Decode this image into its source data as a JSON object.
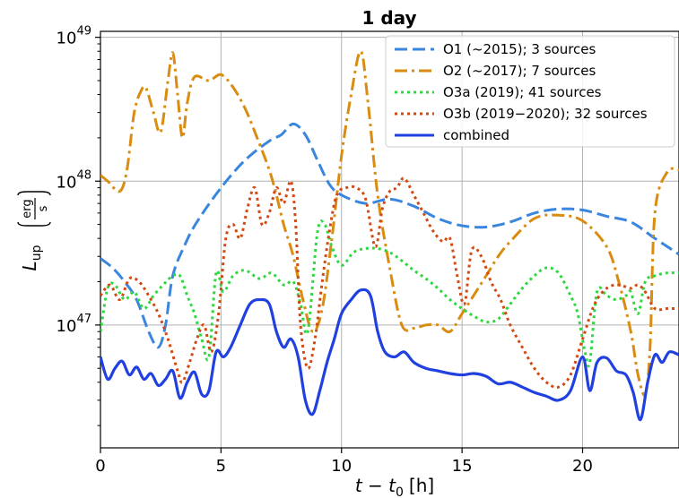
{
  "chart_data": {
    "type": "line",
    "title": "1 day",
    "xlabel": "t − t",
    "xlabel_sub": "0",
    "xlabel_unit": "[h]",
    "ylabel": "L",
    "ylabel_sub": "up",
    "ylabel_unit_num": "erg",
    "ylabel_unit_den": "s",
    "xlim": [
      0,
      24
    ],
    "ylim": [
      1.4e+46,
      1.1e+49
    ],
    "yscale": "log",
    "grid": true,
    "legend_position": "top-right",
    "x_ticks": [
      0,
      5,
      10,
      15,
      20
    ],
    "y_ticks": [
      {
        "value": 1e+47,
        "base": "10",
        "exp": "47"
      },
      {
        "value": 1e+48,
        "base": "10",
        "exp": "48"
      },
      {
        "value": 1e+49,
        "base": "10",
        "exp": "49"
      }
    ],
    "series": [
      {
        "name": "O1 (~2015); 3 sources",
        "color": "#3a86de",
        "dash": "dashed",
        "points": [
          [
            0,
            2.9e+47
          ],
          [
            0.5,
            2.5e+47
          ],
          [
            1,
            2e+47
          ],
          [
            1.5,
            1.5e+47
          ],
          [
            2,
            9e+46
          ],
          [
            2.4,
            7e+46
          ],
          [
            2.7,
            1e+47
          ],
          [
            3,
            2.2e+47
          ],
          [
            3.5,
            3.6e+47
          ],
          [
            4,
            5.2e+47
          ],
          [
            5,
            9e+47
          ],
          [
            6,
            1.4e+48
          ],
          [
            7,
            1.9e+48
          ],
          [
            7.5,
            2.1e+48
          ],
          [
            8,
            2.5e+48
          ],
          [
            8.5,
            2.1e+48
          ],
          [
            9,
            1.4e+48
          ],
          [
            9.5,
            9.5e+47
          ],
          [
            10,
            8e+47
          ],
          [
            11,
            7e+47
          ],
          [
            12,
            7.5e+47
          ],
          [
            13,
            6.7e+47
          ],
          [
            14,
            5.5e+47
          ],
          [
            15,
            4.9e+47
          ],
          [
            16,
            4.8e+47
          ],
          [
            17,
            5.2e+47
          ],
          [
            18,
            6e+47
          ],
          [
            19,
            6.4e+47
          ],
          [
            20,
            6.3e+47
          ],
          [
            21,
            5.7e+47
          ],
          [
            22,
            5.2e+47
          ],
          [
            23,
            4e+47
          ],
          [
            24,
            3.1e+47
          ]
        ]
      },
      {
        "name": "O2 (~2017); 7 sources",
        "color": "#d98c10",
        "dash": "dashdot",
        "points": [
          [
            0,
            1.1e+48
          ],
          [
            0.3,
            1e+48
          ],
          [
            0.8,
            8.5e+47
          ],
          [
            1.1,
            1.2e+48
          ],
          [
            1.4,
            3e+48
          ],
          [
            1.7,
            4.3e+48
          ],
          [
            1.9,
            4.4e+48
          ],
          [
            2.2,
            3e+48
          ],
          [
            2.5,
            2.2e+48
          ],
          [
            2.8,
            5e+48
          ],
          [
            3.0,
            7.8e+48
          ],
          [
            3.2,
            4e+48
          ],
          [
            3.4,
            2e+48
          ],
          [
            3.6,
            3.5e+48
          ],
          [
            3.9,
            5.3e+48
          ],
          [
            4.5,
            5e+48
          ],
          [
            5,
            5.5e+48
          ],
          [
            5.5,
            4.5e+48
          ],
          [
            6,
            3.2e+48
          ],
          [
            6.5,
            2e+48
          ],
          [
            7,
            1.2e+48
          ],
          [
            7.3,
            8e+47
          ],
          [
            7.6,
            5e+47
          ],
          [
            8,
            3e+47
          ],
          [
            8.4,
            1.5e+47
          ],
          [
            8.8,
            9e+46
          ],
          [
            9.2,
            1.3e+47
          ],
          [
            9.6,
            4e+47
          ],
          [
            10,
            1.5e+48
          ],
          [
            10.4,
            4e+48
          ],
          [
            10.8,
            8e+48
          ],
          [
            11.1,
            3.5e+48
          ],
          [
            11.5,
            8e+47
          ],
          [
            12,
            2.5e+47
          ],
          [
            12.5,
            1e+47
          ],
          [
            13,
            9.5e+46
          ],
          [
            13.5,
            1e+47
          ],
          [
            14,
            1e+47
          ],
          [
            14.5,
            9e+46
          ],
          [
            15,
            1.2e+47
          ],
          [
            16,
            2.2e+47
          ],
          [
            16.5,
            3e+47
          ],
          [
            17,
            3.8e+47
          ],
          [
            18,
            5.5e+47
          ],
          [
            19,
            5.8e+47
          ],
          [
            20,
            5.3e+47
          ],
          [
            21,
            3.5e+47
          ],
          [
            21.5,
            2e+47
          ],
          [
            22,
            9e+46
          ],
          [
            22.3,
            4.5e+46
          ],
          [
            22.6,
            3.3e+46
          ],
          [
            22.8,
            7e+46
          ],
          [
            23,
            6e+47
          ],
          [
            23.5,
            1.15e+48
          ],
          [
            24,
            1.2e+48
          ]
        ]
      },
      {
        "name": "O3a (2019); 41 sources",
        "color": "#2ed840",
        "dash": "dotted",
        "points": [
          [
            0,
            9e+46
          ],
          [
            0.3,
            1.8e+47
          ],
          [
            0.6,
            1.9e+47
          ],
          [
            1,
            1.5e+47
          ],
          [
            1.4,
            1.7e+47
          ],
          [
            1.8,
            1.3e+47
          ],
          [
            2.2,
            1.6e+47
          ],
          [
            2.6,
            1.9e+47
          ],
          [
            3.0,
            2.2e+47
          ],
          [
            3.3,
            2.2e+47
          ],
          [
            3.6,
            1.6e+47
          ],
          [
            3.9,
            1.2e+47
          ],
          [
            4.2,
            8e+46
          ],
          [
            4.5,
            6e+46
          ],
          [
            4.8,
            2.3e+47
          ],
          [
            5.1,
            1.7e+47
          ],
          [
            5.5,
            2.2e+47
          ],
          [
            6,
            2.4e+47
          ],
          [
            6.6,
            2.1e+47
          ],
          [
            7.1,
            2.3e+47
          ],
          [
            7.6,
            1.9e+47
          ],
          [
            8,
            2e+47
          ],
          [
            8.3,
            1.4e+47
          ],
          [
            8.6,
            9e+46
          ],
          [
            9.0,
            4.4e+47
          ],
          [
            9.3,
            5e+47
          ],
          [
            9.6,
            3.5e+47
          ],
          [
            10,
            2.6e+47
          ],
          [
            10.5,
            3.2e+47
          ],
          [
            11,
            3.4e+47
          ],
          [
            11.5,
            3.4e+47
          ],
          [
            12,
            3.2e+47
          ],
          [
            12.5,
            2.8e+47
          ],
          [
            13,
            2.4e+47
          ],
          [
            13.5,
            2.1e+47
          ],
          [
            14,
            1.8e+47
          ],
          [
            14.5,
            1.5e+47
          ],
          [
            15,
            1.3e+47
          ],
          [
            15.5,
            1.15e+47
          ],
          [
            16,
            1.05e+47
          ],
          [
            16.5,
            1.1e+47
          ],
          [
            17,
            1.4e+47
          ],
          [
            17.5,
            1.8e+47
          ],
          [
            18,
            2.2e+47
          ],
          [
            18.5,
            2.5e+47
          ],
          [
            19,
            2.3e+47
          ],
          [
            19.5,
            1.6e+47
          ],
          [
            19.8,
            1.2e+47
          ],
          [
            20.1,
            6.5e+46
          ],
          [
            20.3,
            5.5e+46
          ],
          [
            20.6,
            1.7e+47
          ],
          [
            21,
            1.6e+47
          ],
          [
            21.4,
            1.5e+47
          ],
          [
            21.8,
            1.6e+47
          ],
          [
            22,
            1.7e+47
          ],
          [
            22.3,
            1.2e+47
          ],
          [
            22.6,
            2e+47
          ],
          [
            23,
            2.2e+47
          ],
          [
            23.5,
            2.3e+47
          ],
          [
            24,
            2.3e+47
          ]
        ]
      },
      {
        "name": "O3b (2019−2020); 32 sources",
        "color": "#d24a12",
        "dash": "dotted",
        "points": [
          [
            0,
            1.6e+47
          ],
          [
            0.4,
            1.9e+47
          ],
          [
            0.8,
            1.5e+47
          ],
          [
            1.2,
            2.1e+47
          ],
          [
            1.6,
            2e+47
          ],
          [
            2,
            1.6e+47
          ],
          [
            2.4,
            1.2e+47
          ],
          [
            2.8,
            8e+46
          ],
          [
            3.2,
            4.8e+46
          ],
          [
            3.4,
            4e+46
          ],
          [
            3.7,
            5.5e+46
          ],
          [
            4.0,
            8e+46
          ],
          [
            4.3,
            1e+47
          ],
          [
            4.6,
            6.5e+46
          ],
          [
            4.9,
            1.2e+47
          ],
          [
            5.2,
            4e+47
          ],
          [
            5.5,
            5e+47
          ],
          [
            5.8,
            4e+47
          ],
          [
            6.1,
            6.5e+47
          ],
          [
            6.4,
            9e+47
          ],
          [
            6.7,
            5e+47
          ],
          [
            7.0,
            6e+47
          ],
          [
            7.3,
            9e+47
          ],
          [
            7.6,
            7e+47
          ],
          [
            7.9,
            1e+48
          ],
          [
            8.1,
            5e+47
          ],
          [
            8.3,
            1e+47
          ],
          [
            8.6,
            5e+46
          ],
          [
            8.9,
            8e+46
          ],
          [
            9.2,
            2e+47
          ],
          [
            9.5,
            4.5e+47
          ],
          [
            9.8,
            8e+47
          ],
          [
            10.2,
            9e+47
          ],
          [
            10.6,
            9e+47
          ],
          [
            11,
            7.5e+47
          ],
          [
            11.4,
            3.5e+47
          ],
          [
            11.7,
            6.5e+47
          ],
          [
            12.0,
            8.5e+47
          ],
          [
            12.3,
            9e+47
          ],
          [
            12.6,
            1.05e+48
          ],
          [
            13,
            8e+47
          ],
          [
            13.4,
            6e+47
          ],
          [
            13.8,
            4.5e+47
          ],
          [
            14.2,
            3.8e+47
          ],
          [
            14.5,
            4e+47
          ],
          [
            14.8,
            2.2e+47
          ],
          [
            15.1,
            1.4e+47
          ],
          [
            15.4,
            3.3e+47
          ],
          [
            15.8,
            3e+47
          ],
          [
            16.2,
            2e+47
          ],
          [
            16.6,
            1.5e+47
          ],
          [
            17,
            1e+47
          ],
          [
            17.5,
            7e+46
          ],
          [
            18,
            5e+46
          ],
          [
            18.5,
            4e+46
          ],
          [
            19,
            3.7e+46
          ],
          [
            19.5,
            4.5e+46
          ],
          [
            20,
            8e+46
          ],
          [
            20.5,
            1.4e+47
          ],
          [
            21,
            1.8e+47
          ],
          [
            21.5,
            1.9e+47
          ],
          [
            22,
            1.8e+47
          ],
          [
            22.3,
            1.9e+47
          ],
          [
            22.6,
            1.7e+47
          ],
          [
            23,
            1.3e+47
          ],
          [
            23.5,
            1.3e+47
          ],
          [
            24,
            1.3e+47
          ]
        ]
      },
      {
        "name": "combined",
        "color": "#2040e0",
        "dash": "solid",
        "points": [
          [
            0,
            6e+46
          ],
          [
            0.3,
            4.2e+46
          ],
          [
            0.6,
            5e+46
          ],
          [
            0.9,
            5.6e+46
          ],
          [
            1.2,
            4.5e+46
          ],
          [
            1.5,
            5.1e+46
          ],
          [
            1.8,
            4.2e+46
          ],
          [
            2.1,
            4.6e+46
          ],
          [
            2.4,
            3.8e+46
          ],
          [
            2.7,
            4.2e+46
          ],
          [
            3.0,
            4.8e+46
          ],
          [
            3.3,
            3.1e+46
          ],
          [
            3.6,
            4e+46
          ],
          [
            3.9,
            4.7e+46
          ],
          [
            4.2,
            3.3e+46
          ],
          [
            4.5,
            3.5e+46
          ],
          [
            4.8,
            6.5e+46
          ],
          [
            5.1,
            6e+46
          ],
          [
            5.4,
            7e+46
          ],
          [
            5.8,
            1e+47
          ],
          [
            6.2,
            1.4e+47
          ],
          [
            6.6,
            1.5e+47
          ],
          [
            7.0,
            1.4e+47
          ],
          [
            7.3,
            9e+46
          ],
          [
            7.6,
            7e+46
          ],
          [
            7.9,
            8e+46
          ],
          [
            8.2,
            6e+46
          ],
          [
            8.5,
            3e+46
          ],
          [
            8.8,
            2.4e+46
          ],
          [
            9.1,
            3.5e+46
          ],
          [
            9.4,
            5.5e+46
          ],
          [
            9.7,
            8e+46
          ],
          [
            10.0,
            1.2e+47
          ],
          [
            10.4,
            1.5e+47
          ],
          [
            10.8,
            1.75e+47
          ],
          [
            11.2,
            1.6e+47
          ],
          [
            11.5,
            9e+46
          ],
          [
            11.8,
            6.5e+46
          ],
          [
            12.2,
            6e+46
          ],
          [
            12.6,
            6.5e+46
          ],
          [
            13.0,
            5.5e+46
          ],
          [
            13.5,
            5e+46
          ],
          [
            14,
            4.8e+46
          ],
          [
            14.5,
            4.6e+46
          ],
          [
            15,
            4.5e+46
          ],
          [
            15.5,
            4.6e+46
          ],
          [
            16,
            4.4e+46
          ],
          [
            16.5,
            3.9e+46
          ],
          [
            17,
            4e+46
          ],
          [
            17.5,
            3.7e+46
          ],
          [
            18,
            3.4e+46
          ],
          [
            18.5,
            3.2e+46
          ],
          [
            19,
            3e+46
          ],
          [
            19.5,
            3.5e+46
          ],
          [
            20,
            6e+46
          ],
          [
            20.3,
            3.5e+46
          ],
          [
            20.6,
            5.5e+46
          ],
          [
            21,
            5.9e+46
          ],
          [
            21.4,
            4.8e+46
          ],
          [
            21.8,
            4.5e+46
          ],
          [
            22.1,
            3.4e+46
          ],
          [
            22.4,
            2.2e+46
          ],
          [
            22.7,
            4e+46
          ],
          [
            23,
            6.2e+46
          ],
          [
            23.3,
            5.5e+46
          ],
          [
            23.6,
            6.5e+46
          ],
          [
            24,
            6.2e+46
          ]
        ]
      }
    ]
  }
}
